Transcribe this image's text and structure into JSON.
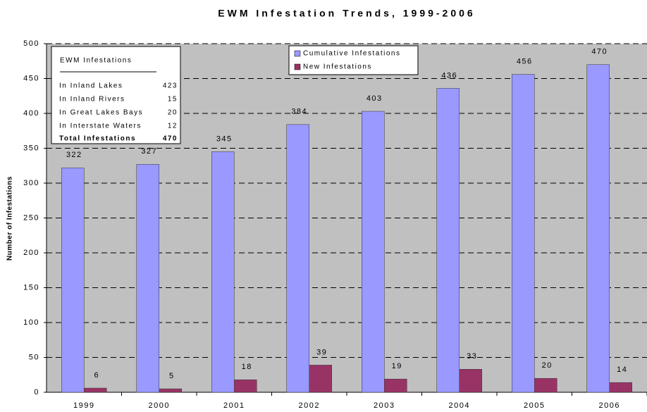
{
  "chart_data": {
    "type": "bar",
    "title": "EWM Infestation Trends, 1999-2006",
    "y_label": "Number of Infestations",
    "categories": [
      "1999",
      "2000",
      "2001",
      "2002",
      "2003",
      "2004",
      "2005",
      "2006"
    ],
    "series": [
      {
        "name": "Cumulative Infestations",
        "color": "#9999ff",
        "values": [
          322,
          327,
          345,
          384,
          403,
          436,
          456,
          470
        ]
      },
      {
        "name": "New Infestations",
        "color": "#993366",
        "values": [
          6,
          5,
          18,
          39,
          19,
          33,
          20,
          14
        ]
      }
    ],
    "ylim": [
      0,
      500
    ],
    "yticks": [
      0,
      50,
      100,
      150,
      200,
      250,
      300,
      350,
      400,
      450,
      500
    ],
    "grid": true,
    "legend": "top",
    "inset": {
      "title": "EWM Infestations",
      "rows": [
        [
          "In Inland Lakes",
          423
        ],
        [
          "In Inland Rivers",
          15
        ],
        [
          "In Great Lakes Bays",
          20
        ],
        [
          "In Interstate Waters",
          12
        ]
      ],
      "total": [
        "Total Infestations",
        470
      ]
    }
  }
}
